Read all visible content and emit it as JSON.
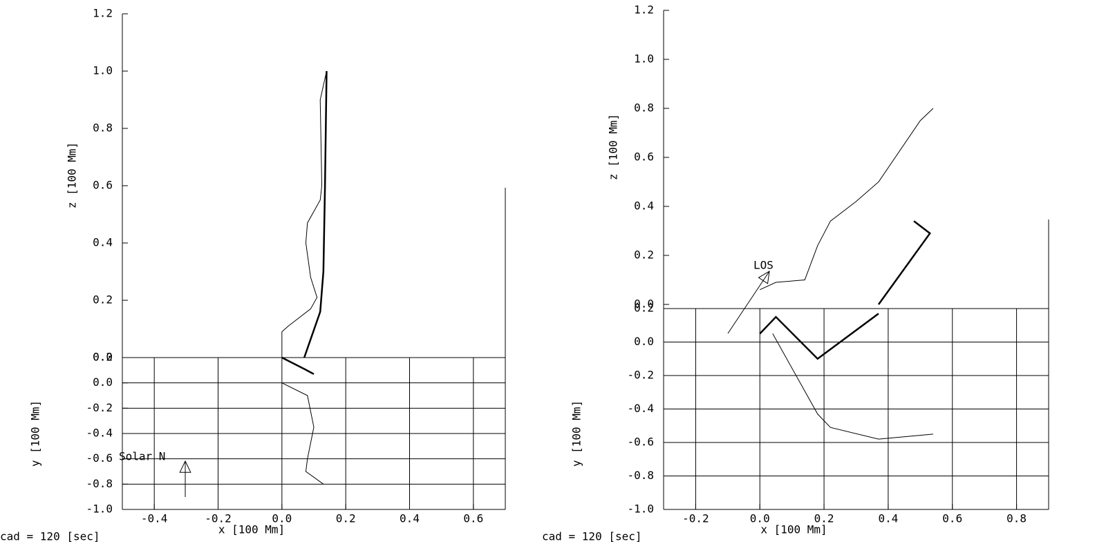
{
  "chart_data": [
    {
      "type": "line",
      "xlabel": "x [100 Mm]",
      "zlabel": "z [100 Mm]",
      "ylabel": "y [100 Mm]",
      "caption": "cad =  120 [sec]",
      "annotation": "Solar N",
      "xlim": [
        -0.5,
        0.7
      ],
      "xticks": [
        -0.4,
        -0.2,
        {
          "value": 0,
          "label": "0.0"
        },
        0.2,
        0.4,
        0.6
      ],
      "zlim": [
        0,
        1.2
      ],
      "zticks": [
        {
          "value": 0,
          "label": "0.0"
        },
        0.2,
        0.4,
        0.6,
        0.8,
        {
          "value": 1,
          "label": "1.0"
        },
        1.2
      ],
      "ylim": [
        -1.0,
        0.2
      ],
      "yticks": [
        {
          "value": -1,
          "label": "-1.0"
        },
        -0.8,
        -0.6,
        -0.4,
        -0.2,
        {
          "value": 0,
          "label": "0.0"
        },
        0.2
      ],
      "grid": true,
      "series": [
        {
          "axis": "z",
          "color": "#000000",
          "width": 1,
          "x": [
            0.0,
            0.0,
            0.02,
            0.09,
            0.11,
            0.09,
            0.075,
            0.08,
            0.12,
            0.125,
            0.12,
            0.14
          ],
          "values": [
            0.0,
            0.09,
            0.11,
            0.17,
            0.21,
            0.28,
            0.4,
            0.47,
            0.55,
            0.6,
            0.9,
            1.0
          ]
        },
        {
          "axis": "z",
          "color": "#000000",
          "width": 2.5,
          "x": [
            0.07,
            0.12,
            0.13,
            0.135,
            0.14
          ],
          "values": [
            0.0,
            0.16,
            0.3,
            0.6,
            1.0
          ]
        },
        {
          "axis": "y",
          "color": "#000000",
          "width": 2.5,
          "x": [
            0.0,
            0.07,
            0.1
          ],
          "values": [
            0.2,
            0.11,
            0.07
          ]
        },
        {
          "axis": "y",
          "color": "#000000",
          "width": 1,
          "x": [
            0.0,
            0.08,
            0.1,
            0.08,
            0.075,
            0.13
          ],
          "values": [
            0.0,
            -0.1,
            -0.35,
            -0.6,
            -0.7,
            -0.8
          ]
        }
      ]
    },
    {
      "type": "line",
      "xlabel": "x [100 Mm]",
      "zlabel": "z [100 Mm]",
      "ylabel": "y [100 Mm]",
      "caption": "cad =  120 [sec]",
      "annotation": "LOS",
      "xlim": [
        -0.3,
        0.9
      ],
      "xticks": [
        -0.2,
        {
          "value": 0,
          "label": "0.0"
        },
        0.2,
        0.4,
        0.6,
        0.8
      ],
      "zlim": [
        0,
        1.2
      ],
      "zticks": [
        {
          "value": 0,
          "label": "0.0"
        },
        0.2,
        0.4,
        0.6,
        0.8,
        {
          "value": 1,
          "label": "1.0"
        },
        1.2
      ],
      "ylim": [
        -1.0,
        0.2
      ],
      "yticks": [
        {
          "value": -1,
          "label": "-1.0"
        },
        -0.8,
        -0.6,
        -0.4,
        -0.2,
        {
          "value": 0,
          "label": "0.0"
        },
        0.2
      ],
      "grid": true,
      "series": [
        {
          "axis": "z",
          "color": "#000000",
          "width": 1,
          "x": [
            0.0,
            0.05,
            0.14,
            0.18,
            0.22,
            0.3,
            0.37,
            0.5,
            0.54
          ],
          "values": [
            0.06,
            0.09,
            0.1,
            0.24,
            0.34,
            0.42,
            0.5,
            0.75,
            0.8
          ]
        },
        {
          "axis": "z",
          "color": "#000000",
          "width": 2.5,
          "x": [
            0.37,
            0.53,
            0.48
          ],
          "values": [
            0.0,
            0.29,
            0.34
          ]
        },
        {
          "axis": "y",
          "color": "#000000",
          "width": 2.5,
          "x": [
            0.0,
            0.05,
            0.18,
            0.37
          ],
          "values": [
            0.05,
            0.15,
            -0.1,
            0.17
          ]
        },
        {
          "axis": "y",
          "color": "#000000",
          "width": 1,
          "x": [
            0.04,
            0.18,
            0.22,
            0.37,
            0.54
          ],
          "values": [
            0.05,
            -0.43,
            -0.51,
            -0.58,
            -0.55
          ]
        }
      ]
    }
  ]
}
